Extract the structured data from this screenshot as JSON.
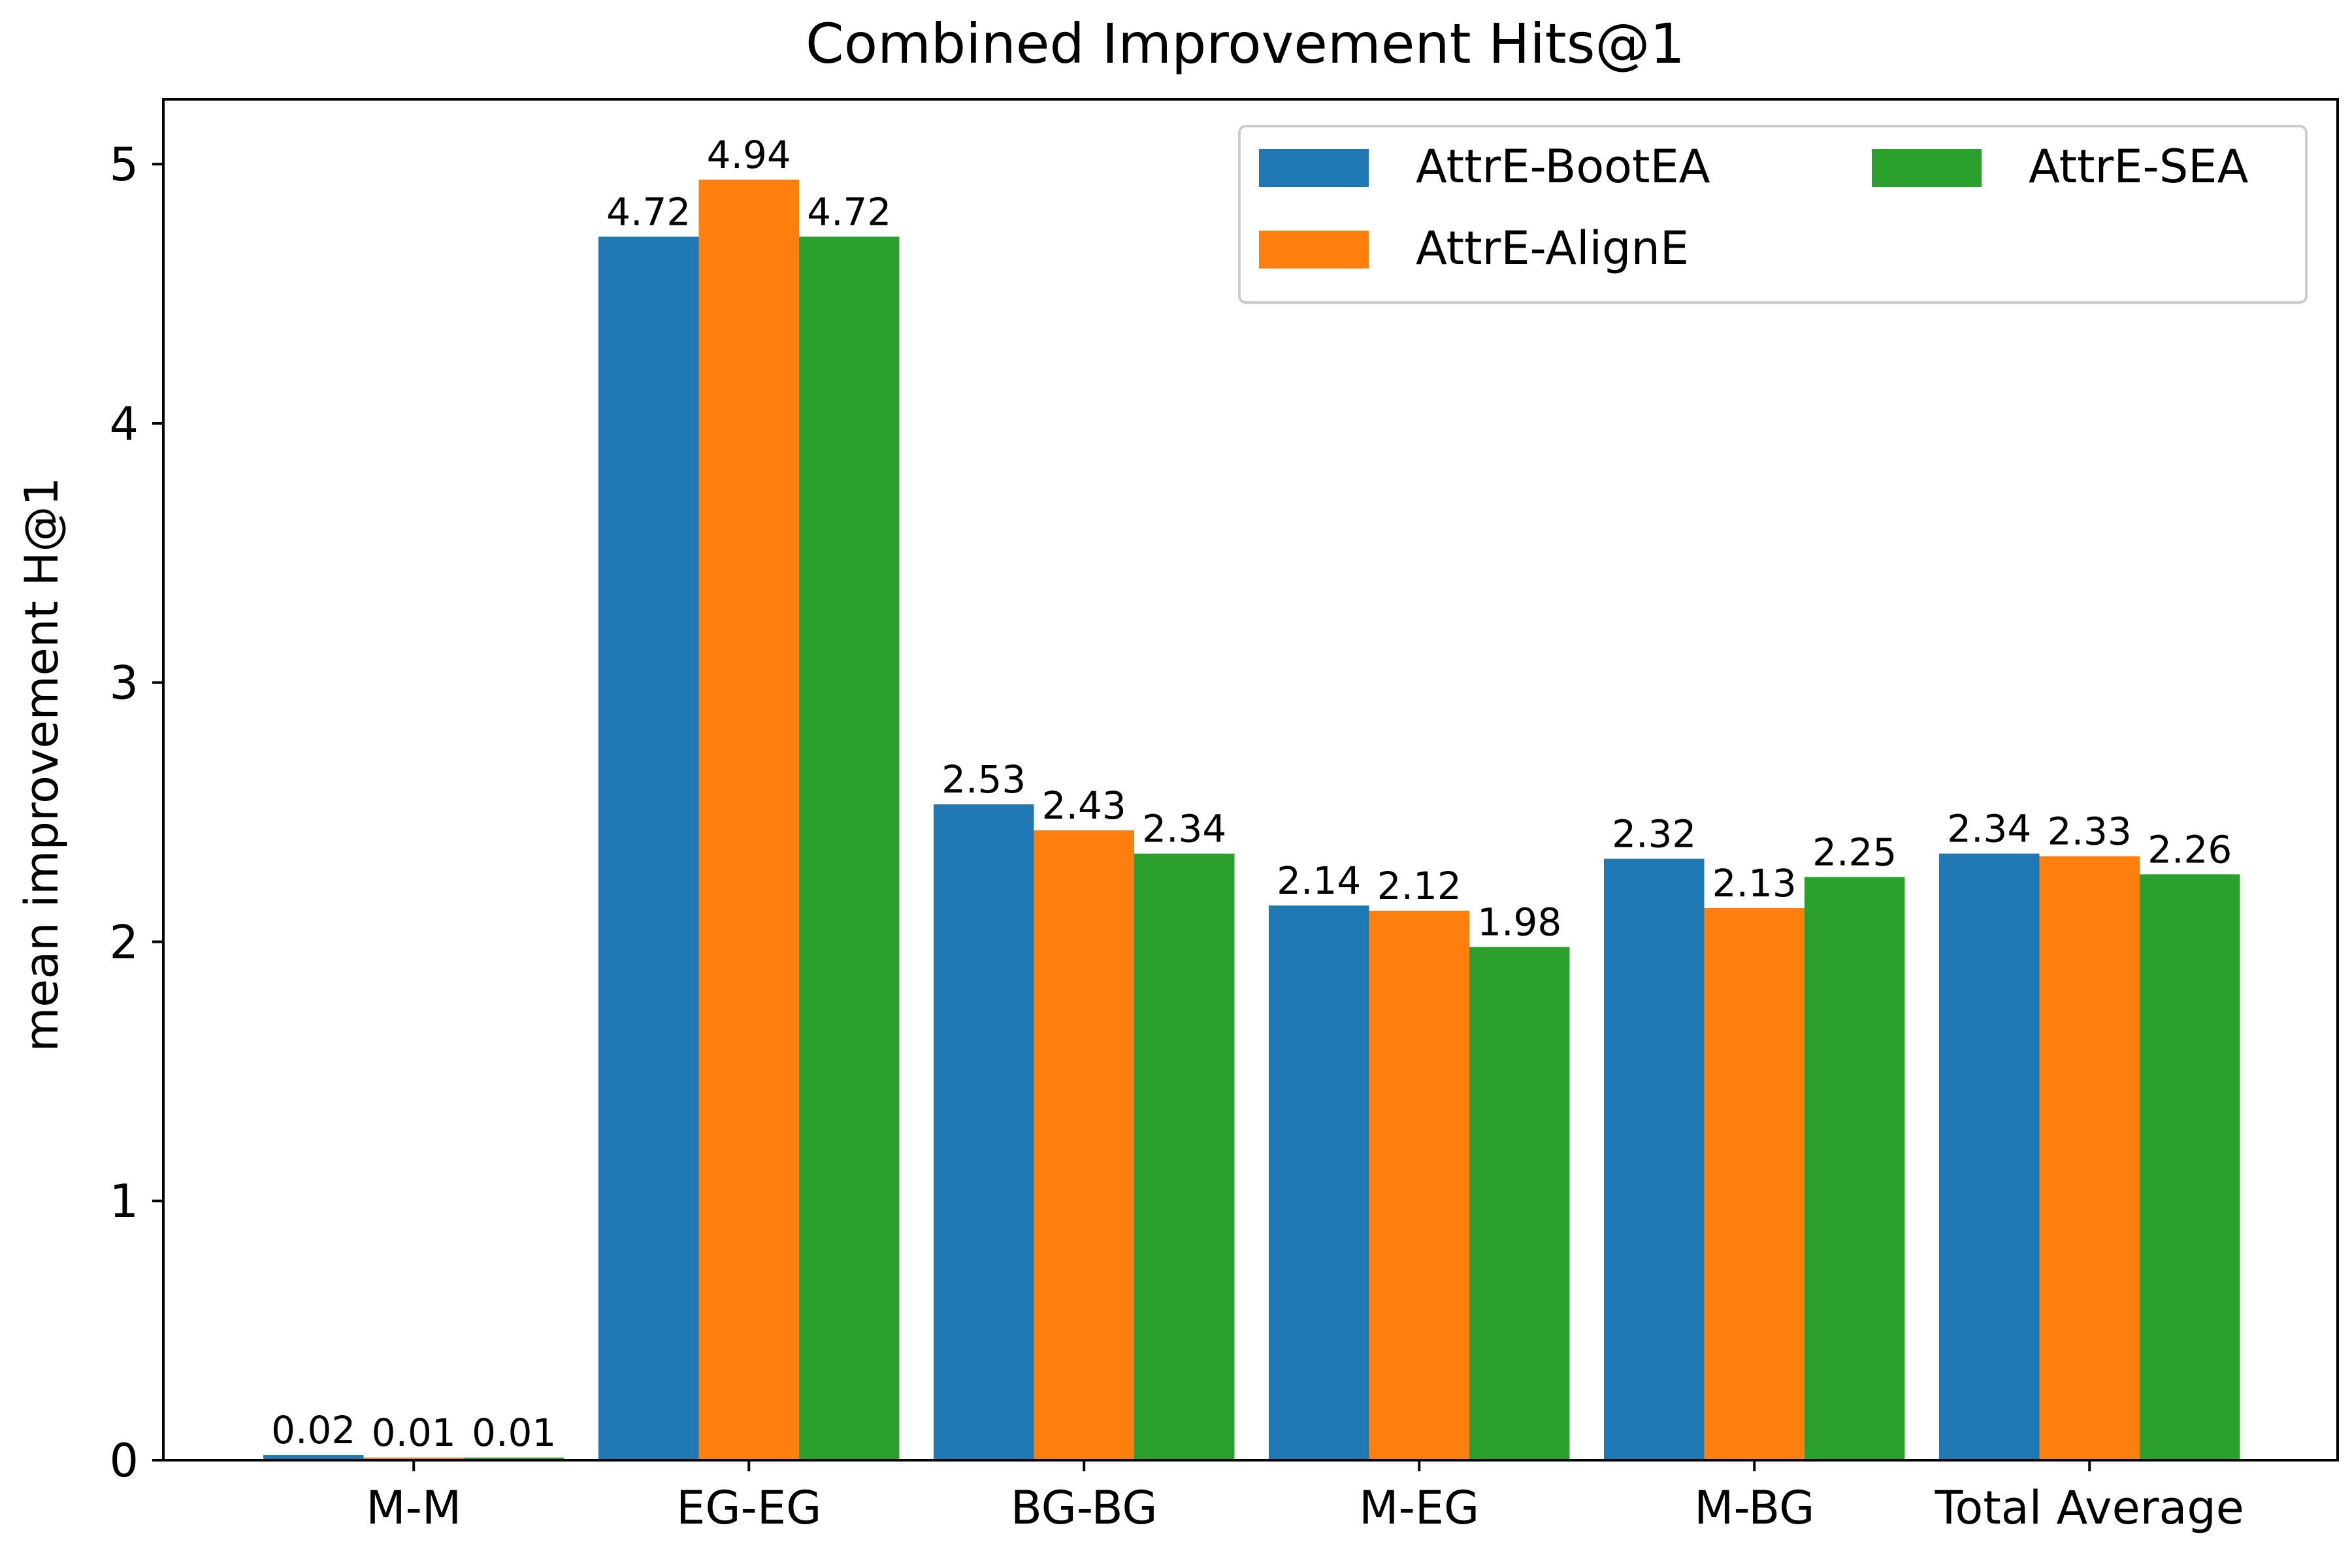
{
  "chart_data": {
    "type": "bar",
    "title": "Combined Improvement Hits@1",
    "xlabel": "",
    "ylabel": "mean improvement H@1",
    "categories": [
      "M-M",
      "EG-EG",
      "BG-BG",
      "M-EG",
      "M-BG",
      "Total Average"
    ],
    "series": [
      {
        "name": "AttrE-BootEA",
        "color": "#1f77b4",
        "values": [
          0.02,
          4.72,
          2.53,
          2.14,
          2.32,
          2.34
        ]
      },
      {
        "name": "AttrE-AlignE",
        "color": "#ff7f0e",
        "values": [
          0.01,
          4.94,
          2.43,
          2.12,
          2.13,
          2.33
        ]
      },
      {
        "name": "AttrE-SEA",
        "color": "#2ca02c",
        "values": [
          0.01,
          4.72,
          2.34,
          1.98,
          2.25,
          2.26
        ]
      }
    ],
    "ylim": [
      0,
      5.25
    ],
    "yticks": [
      0,
      1,
      2,
      3,
      4,
      5
    ],
    "grid": false,
    "legend": {
      "position": "top-right",
      "columns": 2
    }
  }
}
